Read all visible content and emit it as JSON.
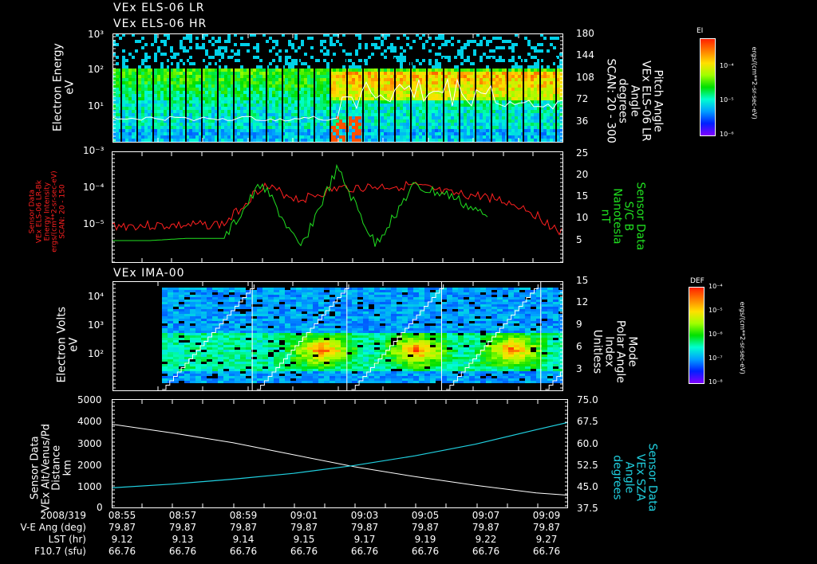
{
  "panel1": {
    "titles": [
      "VEx ELS-06 LR",
      "VEx ELS-06 HR"
    ],
    "ylabel": [
      "Electron Energy",
      "eV"
    ],
    "yticks": [
      "10³",
      "10²",
      "10¹"
    ],
    "right_ticks": [
      "180",
      "144",
      "108",
      "72",
      "36"
    ],
    "right_label": [
      "Pitch Angle",
      "VEx ELS-06 LR",
      "Angle",
      "degrees",
      "SCAN: 20 - 300"
    ],
    "colorbar": {
      "title": "EI",
      "ticks": [
        "10⁻⁴",
        "10⁻⁵",
        "10⁻⁶"
      ],
      "units": "ergs/(cm**2-sr-sec-eV)"
    }
  },
  "panel2": {
    "left_label": [
      "Sensor Data",
      "VEx ELS-06 LR-Bk",
      "Energy Intensity",
      "ergs/(cm**2-sr-sec-eV)",
      "SCAN: 20 - 150"
    ],
    "yticks": [
      "10⁻³",
      "10⁻⁴",
      "10⁻⁵"
    ],
    "right_ticks": [
      "25",
      "20",
      "15",
      "10",
      "5"
    ],
    "right_label": [
      "Sensor Data",
      "S/C B",
      "Nanotesla",
      "nT"
    ],
    "colors": {
      "intensity": "#ff2020",
      "bfield": "#20e020"
    }
  },
  "panel3": {
    "title": "VEx IMA-00",
    "ylabel": [
      "Electron Volts",
      "eV"
    ],
    "yticks": [
      "10⁴",
      "10³",
      "10²"
    ],
    "right_ticks": [
      "15",
      "12",
      "9",
      "6",
      "3"
    ],
    "right_label": [
      "Mode",
      "Polar Angle",
      "Index",
      "Unitless"
    ],
    "colorbar": {
      "title": "DEF",
      "ticks": [
        "10⁻⁴",
        "10⁻⁵",
        "10⁻⁶",
        "10⁻⁷",
        "10⁻⁸"
      ],
      "units": "ergs/(cm**2-sr-sec-eV)"
    }
  },
  "panel4": {
    "left_label": [
      "Sensor Data",
      "VEx Alt/Venus/Pd",
      "Distance",
      "km"
    ],
    "yticks": [
      "5000",
      "4000",
      "3000",
      "2000",
      "1000",
      "0"
    ],
    "right_ticks": [
      "75.0",
      "67.5",
      "60.0",
      "52.5",
      "45.0",
      "37.5"
    ],
    "right_label": [
      "Sensor Data",
      "VEx SZA",
      "Angle",
      "degrees"
    ],
    "colors": {
      "altitude": "#ffffff",
      "sza": "#20d0e0"
    }
  },
  "xaxis": {
    "row_labels": [
      "2008/319",
      "V-E Ang (deg)",
      "LST (hr)",
      "F10.7 (sfu)"
    ],
    "times": [
      "08:55",
      "08:57",
      "08:59",
      "09:01",
      "09:03",
      "09:05",
      "09:07",
      "09:09"
    ],
    "ve_ang": [
      "79.87",
      "79.87",
      "79.87",
      "79.87",
      "79.87",
      "79.87",
      "79.87",
      "79.87"
    ],
    "lst": [
      "9.12",
      "9.13",
      "9.14",
      "9.15",
      "9.17",
      "9.19",
      "9.22",
      "9.27"
    ],
    "f107": [
      "66.76",
      "66.76",
      "66.76",
      "66.76",
      "66.76",
      "66.76",
      "66.76",
      "66.76"
    ]
  },
  "chart_data": [
    {
      "type": "heatmap",
      "title": "VEx ELS-06 LR / VEx ELS-06 HR",
      "xlabel": "UT 2008/319",
      "ylabel": "Electron Energy (eV)",
      "ylim": [
        1,
        1000
      ],
      "yscale": "log",
      "x": [
        "08:55",
        "08:57",
        "08:59",
        "09:01",
        "09:03",
        "09:05",
        "09:07",
        "09:09"
      ],
      "colorbar": {
        "label": "EI ergs/(cm**2-sr-sec-eV)",
        "range": [
          1e-06,
          0.001
        ]
      },
      "overlay": {
        "name": "Pitch Angle (degrees, SCAN 20-300)",
        "ylim": [
          0,
          180
        ]
      },
      "notes": "Broad green band 3-50 eV throughout; enhanced red/orange flux 20-80 eV from ~09:01 to ~09:09"
    },
    {
      "type": "line",
      "x": [
        "08:55",
        "08:57",
        "08:59",
        "09:01",
        "09:02",
        "09:03",
        "09:04",
        "09:05",
        "09:06",
        "09:07",
        "09:08",
        "09:09",
        "09:10"
      ],
      "series": [
        {
          "name": "VEx ELS-06 LR-Bk Energy Intensity (ergs/(cm**2-sr-sec-eV))",
          "axis": "left",
          "yscale": "log",
          "ylim": [
            1e-06,
            0.001
          ],
          "values": [
            1e-05,
            1e-05,
            1e-05,
            1.1e-05,
            0.00012,
            5e-05,
            0.0001,
            0.00011,
            0.00012,
            7e-05,
            6e-05,
            3e-05,
            6e-06
          ]
        },
        {
          "name": "S/C B (nT)",
          "axis": "right",
          "ylim": [
            0,
            25
          ],
          "values": [
            5,
            5,
            5.5,
            5.5,
            18,
            3,
            21,
            4,
            17,
            15,
            10,
            null,
            null
          ]
        }
      ]
    },
    {
      "type": "heatmap",
      "title": "VEx IMA-00",
      "ylabel": "Electron Volts (eV)",
      "ylim": [
        10,
        50000
      ],
      "yscale": "log",
      "x": [
        "08:55",
        "08:57",
        "08:59",
        "09:01",
        "09:03",
        "09:05",
        "09:07",
        "09:09"
      ],
      "colorbar": {
        "label": "DEF ergs/(cm**2-sr-sec-eV)",
        "range": [
          1e-08,
          0.0001
        ]
      },
      "overlay": {
        "name": "Mode Polar Angle Index (Unitless)",
        "ylim": [
          0,
          15
        ]
      },
      "notes": "Data starts ~08:56; peaks ~100-300 eV near 09:02, 09:05, 09:08"
    },
    {
      "type": "line",
      "x": [
        "08:55",
        "08:57",
        "08:59",
        "09:01",
        "09:03",
        "09:05",
        "09:07",
        "09:09",
        "09:10"
      ],
      "series": [
        {
          "name": "VEx Alt/Venus/Pd Distance (km)",
          "axis": "left",
          "ylim": [
            0,
            5000
          ],
          "values": [
            3850,
            3450,
            3000,
            2450,
            1900,
            1450,
            1050,
            700,
            600
          ]
        },
        {
          "name": "VEx SZA Angle (degrees)",
          "axis": "right",
          "ylim": [
            37.5,
            75.0
          ],
          "values": [
            44.5,
            45.8,
            47.5,
            49.5,
            52.2,
            55.5,
            59.5,
            64.5,
            67.0
          ]
        }
      ]
    }
  ]
}
